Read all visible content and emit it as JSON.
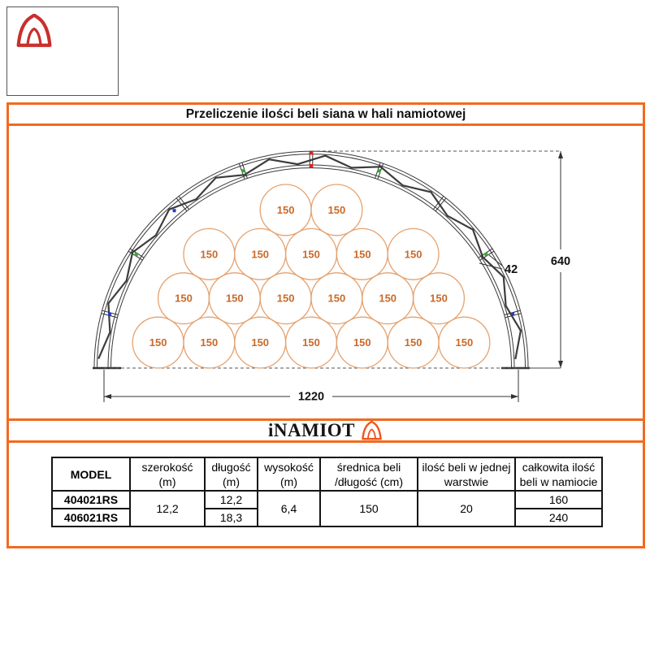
{
  "page": {
    "title": "Przeliczenie ilości beli siana w hali namiotowej",
    "accent_color": "#F26A1F"
  },
  "corner_logo": {
    "icon": "tent-logo-icon",
    "color": "#C9302C"
  },
  "brand": {
    "name": "iNAMIOT",
    "icon": "tent-icon",
    "icon_color": "#F0551F"
  },
  "diagram": {
    "bale_label": "150",
    "bale_rows_top_to_bottom": [
      2,
      5,
      6,
      7
    ],
    "bale_stroke_color": "#E5A26F",
    "bale_label_color": "#C96A2A",
    "truss_color": "#3a3a3a",
    "dimensions": {
      "width": "1220",
      "height": "640",
      "truss_depth": "42"
    },
    "markers": [
      {
        "angle": 90,
        "radius": "outer",
        "color": "#E02020"
      },
      {
        "angle": 90,
        "radius": "inner",
        "color": "#E02020"
      },
      {
        "angle": 71,
        "radius": "mid",
        "color": "#28B428"
      },
      {
        "angle": 33,
        "radius": "mid",
        "color": "#28B428"
      },
      {
        "angle": 109,
        "radius": "mid",
        "color": "#28B428"
      },
      {
        "angle": 147,
        "radius": "mid",
        "color": "#28B428"
      },
      {
        "angle": 15,
        "radius": "mid",
        "color": "#2838D8"
      },
      {
        "angle": 131,
        "radius": "mid",
        "color": "#2838D8"
      },
      {
        "angle": 165,
        "radius": "mid",
        "color": "#2838D8"
      }
    ]
  },
  "table": {
    "headers": [
      {
        "line1": "MODEL",
        "line2": ""
      },
      {
        "line1": "szerokość",
        "line2": "(m)"
      },
      {
        "line1": "długość",
        "line2": "(m)"
      },
      {
        "line1": "wysokość",
        "line2": "(m)"
      },
      {
        "line1": "średnica beli",
        "line2": "/długość (cm)"
      },
      {
        "line1": "ilość beli w jednej",
        "line2": "warstwie"
      },
      {
        "line1": "całkowita ilość",
        "line2": "beli w namiocie"
      }
    ],
    "merged": {
      "szerokosc": "12,2",
      "wysokosc": "6,4",
      "srednica": "150",
      "ilosc_warstwa": "20"
    },
    "rows": [
      {
        "model": "404021RS",
        "dlugosc": "12,2",
        "calkowita": "160"
      },
      {
        "model": "406021RS",
        "dlugosc": "18,3",
        "calkowita": "240"
      }
    ]
  }
}
